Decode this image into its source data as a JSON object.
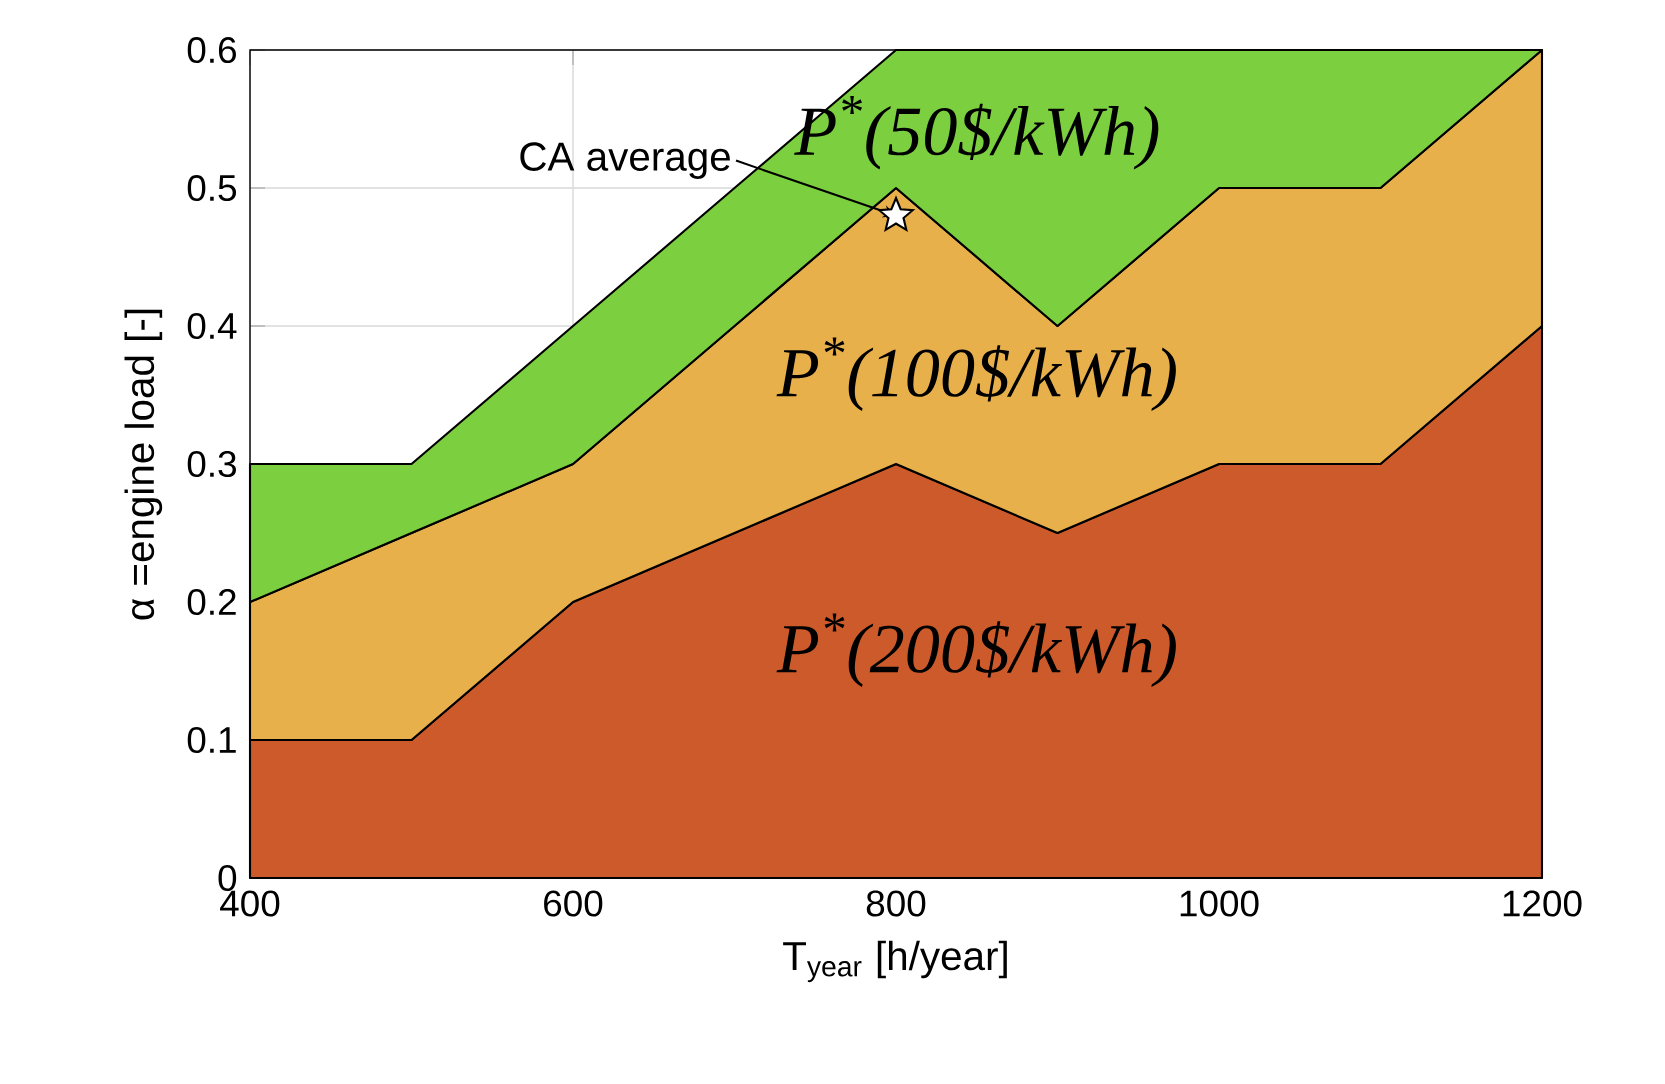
{
  "chart_data": {
    "type": "area",
    "stacked": true,
    "xlabel": "T$_{year}$ [h/year]",
    "ylabel": "α =engine load [-]",
    "x": [
      400,
      500,
      600,
      700,
      800,
      900,
      1000,
      1100,
      1200
    ],
    "series": [
      {
        "name": "P$^{*}$(200$/kWh)",
        "color": "#cc5a2a",
        "values": [
          0.1,
          0.1,
          0.2,
          0.25,
          0.3,
          0.25,
          0.3,
          0.3,
          0.4
        ]
      },
      {
        "name": "P$^{*}$(100$/kWh)",
        "color": "#e8b04a",
        "values": [
          0.1,
          0.15,
          0.1,
          0.15,
          0.2,
          0.15,
          0.2,
          0.2,
          0.2
        ]
      },
      {
        "name": "P$^{*}$(50$/kWh)",
        "color": "#7ccf3f",
        "values": [
          0.1,
          0.05,
          0.1,
          0.1,
          0.1,
          0.2,
          0.1,
          0.1,
          0.0
        ]
      },
      {
        "type": "scatter",
        "marker": "star",
        "color": "#000000",
        "x": [
          800
        ],
        "values": [
          0.48
        ]
      }
    ],
    "annotations": [
      {
        "text": "CA average",
        "x": 800,
        "y": 0.48
      }
    ],
    "xlim": [
      400,
      1200
    ],
    "ylim": [
      0,
      0.6
    ],
    "xticks": [
      400,
      600,
      800,
      1000,
      1200
    ],
    "yticks": [
      0,
      0.1,
      0.2,
      0.3,
      0.4,
      0.5,
      0.6
    ],
    "grid": true
  }
}
